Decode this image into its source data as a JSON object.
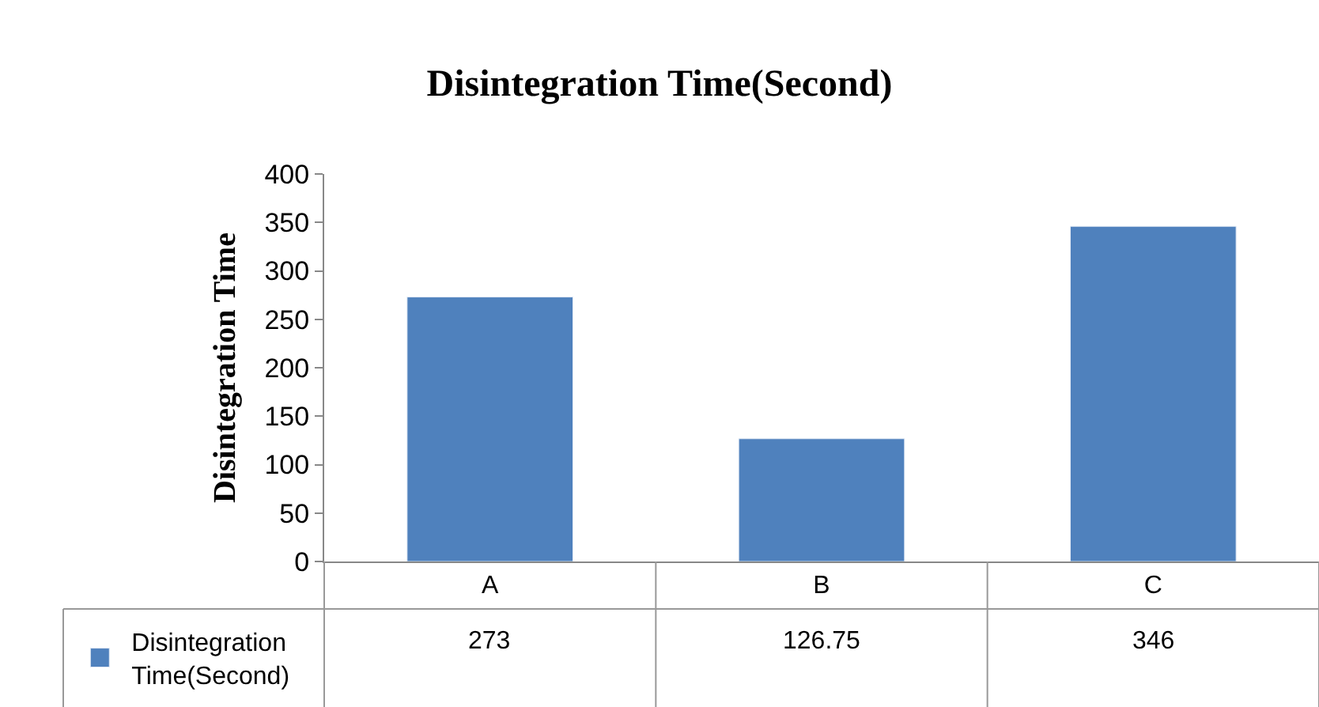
{
  "chart_data": {
    "type": "bar",
    "title": "Disintegration Time(Second)",
    "ylabel": "Disintegration Time",
    "categories": [
      "A",
      "B",
      "C"
    ],
    "series": [
      {
        "name": "Disintegration Time(Second)",
        "color": "#4f81bd",
        "values": [
          273,
          126.75,
          346
        ]
      }
    ],
    "ylim": [
      0,
      400
    ],
    "yticks": [
      0,
      50,
      100,
      150,
      200,
      250,
      300,
      350,
      400
    ],
    "data_labels": true,
    "legend": "bottom left"
  }
}
